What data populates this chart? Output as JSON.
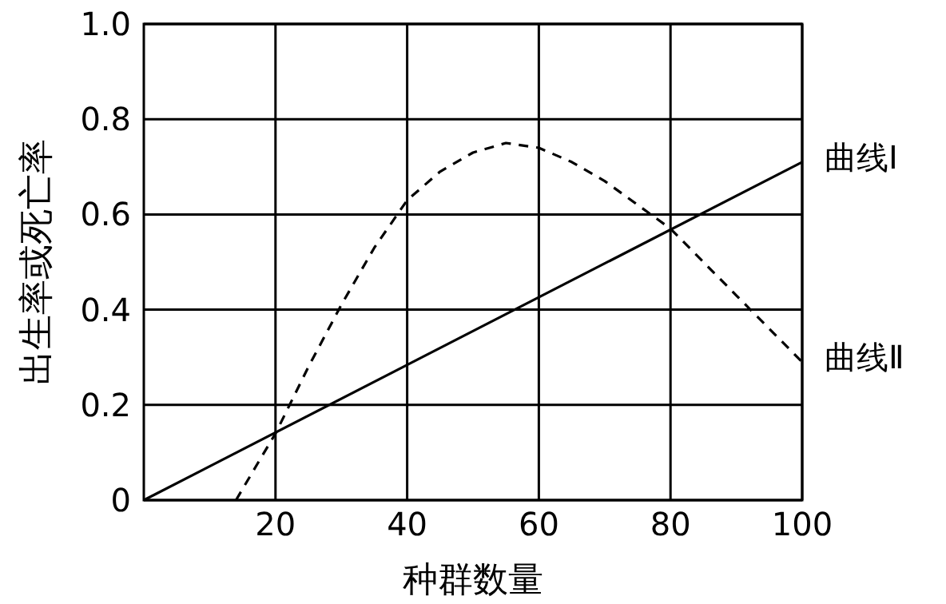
{
  "chart_data": {
    "type": "line",
    "xlabel": "种群数量",
    "ylabel": "出生率或死亡率",
    "xlim": [
      0,
      100
    ],
    "ylim": [
      0,
      1
    ],
    "xticks": [
      20,
      40,
      60,
      80,
      100
    ],
    "yticks": [
      0,
      0.2,
      0.4,
      0.6,
      0.8,
      {
        "value": 1,
        "label": "1.0"
      }
    ],
    "grid": true,
    "series": [
      {
        "name": "曲线Ⅰ",
        "color": "#000000",
        "line_style": "solid",
        "x": [
          0,
          100
        ],
        "values": [
          0,
          0.71
        ]
      },
      {
        "name": "曲线Ⅱ",
        "color": "#000000",
        "line_style": "dashed",
        "x": [
          14,
          17,
          20,
          25,
          30,
          35,
          40,
          45,
          50,
          55,
          60,
          65,
          70,
          75,
          80,
          85,
          90,
          95,
          100
        ],
        "values": [
          0,
          0.07,
          0.14,
          0.28,
          0.41,
          0.53,
          0.63,
          0.69,
          0.73,
          0.75,
          0.74,
          0.71,
          0.67,
          0.62,
          0.57,
          0.5,
          0.43,
          0.36,
          0.29
        ]
      }
    ]
  }
}
